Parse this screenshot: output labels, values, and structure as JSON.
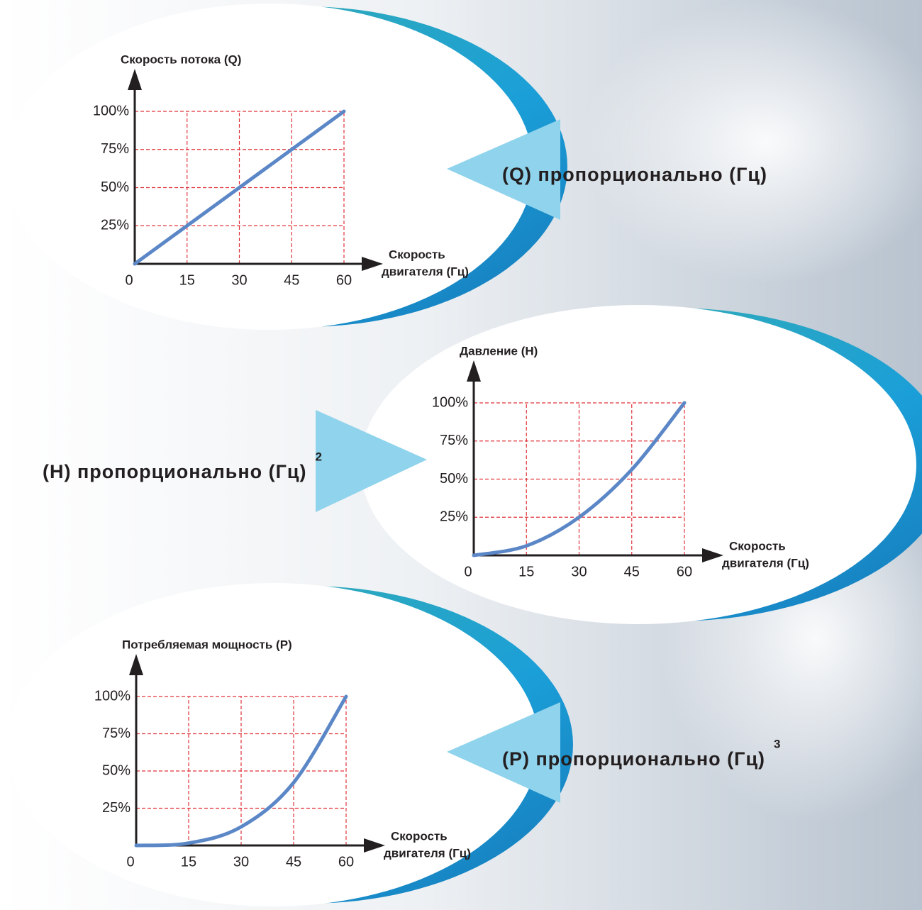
{
  "chart_data": [
    {
      "type": "line",
      "y_label": "Скорость потока (Q)",
      "x_label": [
        "Скорость",
        "двигателя (Гц)"
      ],
      "annotation": "(Q) пропорционально (Гц)",
      "x": [
        0,
        15,
        30,
        45,
        60
      ],
      "values": [
        0,
        25,
        50,
        75,
        100
      ],
      "color": "#5b87c7",
      "xlim": [
        0,
        60
      ],
      "ylim": [
        0,
        100
      ],
      "xticks": [
        0,
        15,
        30,
        45,
        60
      ],
      "yticks": [
        {
          "value": 25,
          "label": "25%"
        },
        {
          "value": 50,
          "label": "50%"
        },
        {
          "value": 75,
          "label": "75%"
        },
        {
          "value": 100,
          "label": "100%"
        }
      ],
      "grid": true
    },
    {
      "type": "line",
      "y_label": "Давление (H)",
      "x_label": [
        "Скорость",
        "двигателя (Гц)"
      ],
      "annotation": "(H) пропорционально (Гц)",
      "annotation_exponent": "2",
      "x": [
        0,
        15,
        30,
        45,
        60
      ],
      "values": [
        0,
        6.25,
        25,
        56.25,
        100
      ],
      "color": "#5b87c7",
      "xlim": [
        0,
        60
      ],
      "ylim": [
        0,
        100
      ],
      "xticks": [
        0,
        15,
        30,
        45,
        60
      ],
      "yticks": [
        {
          "value": 25,
          "label": "25%"
        },
        {
          "value": 50,
          "label": "50%"
        },
        {
          "value": 75,
          "label": "75%"
        },
        {
          "value": 100,
          "label": "100%"
        }
      ],
      "grid": true
    },
    {
      "type": "line",
      "y_label": "Потребляемая мощность (P)",
      "x_label": [
        "Скорость",
        "двигателя (Гц)"
      ],
      "annotation": "(P) пропорционально (Гц)",
      "annotation_exponent": "3",
      "x": [
        0,
        15,
        30,
        45,
        60
      ],
      "values": [
        0,
        1.5625,
        12.5,
        42.1875,
        100
      ],
      "color": "#5b87c7",
      "xlim": [
        0,
        60
      ],
      "ylim": [
        0,
        100
      ],
      "xticks": [
        0,
        15,
        30,
        45,
        60
      ],
      "yticks": [
        {
          "value": 25,
          "label": "25%"
        },
        {
          "value": 50,
          "label": "50%"
        },
        {
          "value": 75,
          "label": "75%"
        },
        {
          "value": 100,
          "label": "100%"
        }
      ],
      "grid": true
    }
  ]
}
